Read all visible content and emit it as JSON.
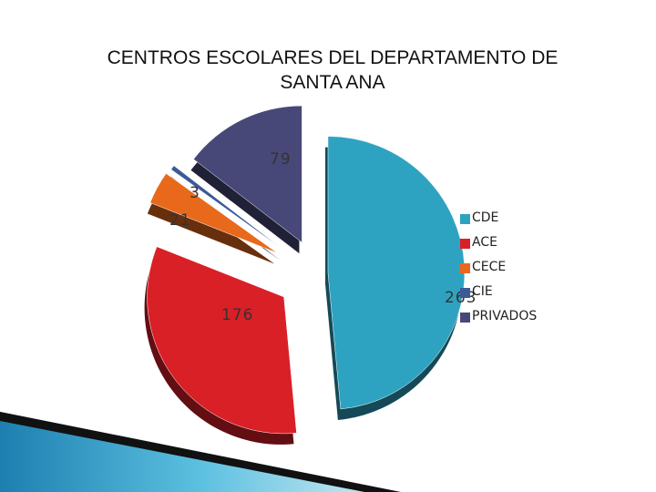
{
  "chart_data": {
    "type": "pie",
    "title_line1": "CENTROS ESCOLARES DEL DEPARTAMENTO DE",
    "title_line2": "SANTA ANA",
    "legend_position": "right",
    "slices": [
      {
        "name": "CDE",
        "value": 263,
        "color": "#2ea3c1"
      },
      {
        "name": "ACE",
        "value": 176,
        "color": "#d92027"
      },
      {
        "name": "CECE",
        "value": 21,
        "color": "#e8691c"
      },
      {
        "name": "CIE",
        "value": 3,
        "color": "#3c5a96"
      },
      {
        "name": "PRIVADOS",
        "value": 79,
        "color": "#484878"
      }
    ]
  }
}
